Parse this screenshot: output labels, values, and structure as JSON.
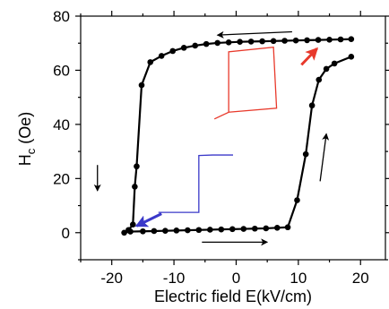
{
  "chart_data": {
    "type": "line",
    "xlabel": "Electric field E(kV/cm)",
    "ylabel_main": "H",
    "ylabel_sub": "c",
    "ylabel_unit": " (Oe)",
    "xlim": [
      -25,
      24
    ],
    "ylim": [
      -10,
      80
    ],
    "x_ticks": [
      -20,
      -10,
      0,
      10,
      20
    ],
    "y_ticks": [
      0,
      20,
      40,
      60,
      80
    ],
    "x_tick_labels": [
      "-20",
      "-10",
      "0",
      "10",
      "20"
    ],
    "y_tick_labels": [
      "0",
      "20",
      "40",
      "60",
      "80"
    ],
    "grid": false,
    "series": [
      {
        "color": "#000000",
        "marker": "circle",
        "points": [
          [
            18.5,
            71.5
          ],
          [
            16.8,
            71.4
          ],
          [
            15.0,
            71.3
          ],
          [
            13.2,
            71.2
          ],
          [
            11.4,
            71.1
          ],
          [
            9.6,
            71.0
          ],
          [
            7.8,
            70.9
          ],
          [
            6.0,
            70.8
          ],
          [
            4.2,
            70.7
          ],
          [
            2.4,
            70.6
          ],
          [
            0.6,
            70.5
          ],
          [
            -1.2,
            70.3
          ],
          [
            -3.0,
            70.1
          ],
          [
            -4.8,
            69.7
          ],
          [
            -6.6,
            69.1
          ],
          [
            -8.4,
            68.3
          ],
          [
            -10.2,
            67.1
          ],
          [
            -12.0,
            65.3
          ],
          [
            -13.8,
            63.0
          ],
          [
            -15.2,
            54.5
          ],
          [
            -16.0,
            24.5
          ],
          [
            -16.3,
            17.0
          ],
          [
            -16.6,
            3.0
          ],
          [
            -17.3,
            1.0
          ],
          [
            -18.0,
            0.0
          ],
          [
            -17.0,
            0.4
          ],
          [
            -15.0,
            0.5
          ],
          [
            -13.2,
            0.6
          ],
          [
            -11.4,
            0.7
          ],
          [
            -9.6,
            0.8
          ],
          [
            -7.8,
            0.9
          ],
          [
            -6.0,
            1.0
          ],
          [
            -4.2,
            1.1
          ],
          [
            -2.4,
            1.2
          ],
          [
            -0.6,
            1.3
          ],
          [
            1.2,
            1.4
          ],
          [
            3.0,
            1.5
          ],
          [
            4.8,
            1.6
          ],
          [
            6.6,
            1.8
          ],
          [
            8.3,
            2.0
          ],
          [
            9.8,
            12.0
          ],
          [
            11.2,
            29.0
          ],
          [
            12.2,
            47.0
          ],
          [
            13.3,
            56.5
          ],
          [
            14.5,
            60.5
          ],
          [
            15.8,
            62.5
          ],
          [
            18.5,
            65.0
          ]
        ]
      }
    ],
    "annotations": {
      "arrows_black": [
        {
          "from": [
            9,
            74.2
          ],
          "to": [
            -3,
            73.0
          ]
        },
        {
          "from": [
            -22.3,
            25
          ],
          "to": [
            -22.3,
            15.5
          ]
        },
        {
          "from": [
            -5.5,
            -3.5
          ],
          "to": [
            5.0,
            -3.5
          ]
        },
        {
          "from": [
            13.5,
            19
          ],
          "to": [
            14.5,
            36.5
          ]
        }
      ],
      "arrow_red": {
        "from": [
          10.5,
          62
        ],
        "to": [
          13,
          68
        ],
        "color": "#e8392b"
      },
      "arrow_blue": {
        "from": [
          -12,
          7
        ],
        "to": [
          -16,
          2.5
        ],
        "color": "#3a38c9"
      },
      "loop_red": {
        "color": "#e8392b",
        "points": [
          [
            -3.5,
            42
          ],
          [
            -1.2,
            44.5
          ],
          [
            -1.2,
            66.8
          ],
          [
            6.0,
            68.5
          ],
          [
            6.5,
            46
          ],
          [
            -1.2,
            44.5
          ]
        ]
      },
      "tail_red": {
        "color": "#e8392b",
        "points": [
          [
            6.5,
            68
          ],
          [
            9.0,
            65.5
          ]
        ]
      },
      "step_blue": {
        "color": "#3a38c9",
        "points": [
          [
            -12.5,
            7.5
          ],
          [
            -6.0,
            7.5
          ],
          [
            -6.0,
            28.5
          ],
          [
            -3.8,
            28.7
          ],
          [
            -3.8,
            28.7
          ],
          [
            -0.5,
            28.7
          ]
        ]
      }
    }
  }
}
